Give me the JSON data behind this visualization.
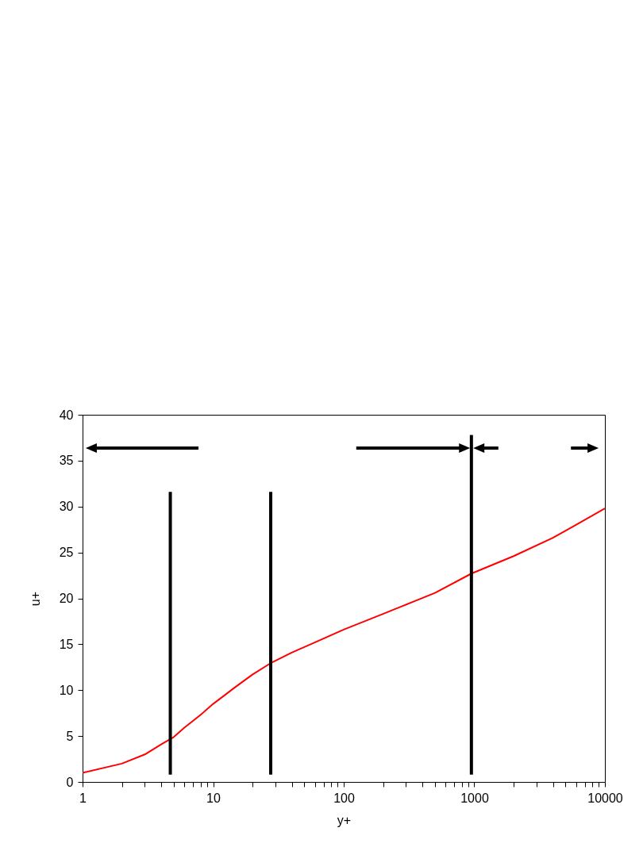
{
  "chart_data": {
    "type": "line",
    "xlabel": "y+",
    "ylabel": "u+",
    "log": "x",
    "grid": false,
    "xlim": [
      1,
      10000
    ],
    "ylim": [
      0,
      40
    ],
    "xticks": [
      1,
      {
        "value": 2,
        "label": null
      },
      {
        "value": 3,
        "label": null
      },
      {
        "value": 4,
        "label": null
      },
      {
        "value": 5,
        "label": null
      },
      {
        "value": 6,
        "label": null
      },
      {
        "value": 7,
        "label": null
      },
      {
        "value": 8,
        "label": null
      },
      {
        "value": 9,
        "label": null
      },
      10,
      {
        "value": 20,
        "label": null
      },
      {
        "value": 30,
        "label": null
      },
      {
        "value": 40,
        "label": null
      },
      {
        "value": 50,
        "label": null
      },
      {
        "value": 60,
        "label": null
      },
      {
        "value": 70,
        "label": null
      },
      {
        "value": 80,
        "label": null
      },
      {
        "value": 90,
        "label": null
      },
      100,
      {
        "value": 200,
        "label": null
      },
      {
        "value": 300,
        "label": null
      },
      {
        "value": 400,
        "label": null
      },
      {
        "value": 500,
        "label": null
      },
      {
        "value": 600,
        "label": null
      },
      {
        "value": 700,
        "label": null
      },
      {
        "value": 800,
        "label": null
      },
      {
        "value": 900,
        "label": null
      },
      1000,
      {
        "value": 2000,
        "label": null
      },
      {
        "value": 3000,
        "label": null
      },
      {
        "value": 4000,
        "label": null
      },
      {
        "value": 5000,
        "label": null
      },
      {
        "value": 6000,
        "label": null
      },
      {
        "value": 7000,
        "label": null
      },
      {
        "value": 8000,
        "label": null
      },
      {
        "value": 9000,
        "label": null
      },
      10000
    ],
    "yticks": [
      0,
      5,
      10,
      15,
      20,
      25,
      30,
      35,
      40
    ],
    "series": [
      {
        "color": "#ff0000",
        "x": [
          1,
          2,
          3,
          4,
          5,
          6,
          8,
          10,
          15,
          20,
          28,
          40,
          60,
          100,
          200,
          500,
          950,
          2000,
          4000,
          6000,
          10000
        ],
        "values": [
          1.0,
          2.0,
          3.0,
          4.1,
          4.9,
          5.9,
          7.3,
          8.5,
          10.4,
          11.7,
          13.0,
          14.1,
          15.2,
          16.6,
          18.3,
          20.6,
          22.7,
          24.6,
          26.6,
          28.0,
          29.8
        ]
      },
      {
        "color": "#000000",
        "x": [
          4.7,
          4.7
        ],
        "values": [
          0.8,
          31.6
        ]
      },
      {
        "color": "#000000",
        "x": [
          27.6,
          27.6
        ],
        "values": [
          0.8,
          31.6
        ]
      },
      {
        "color": "#000000",
        "x": [
          950,
          950
        ],
        "values": [
          0.8,
          37.8
        ]
      }
    ]
  }
}
